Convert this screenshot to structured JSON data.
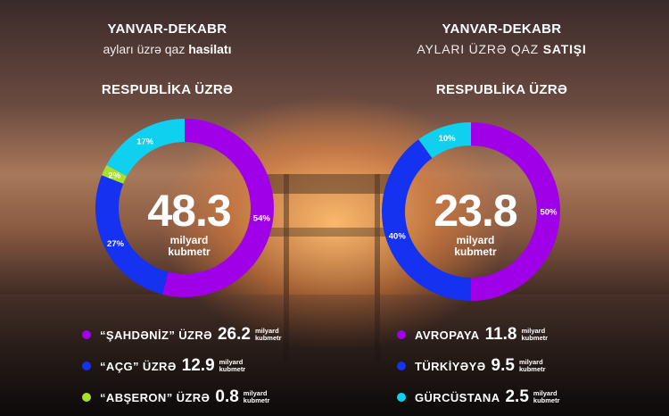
{
  "left": {
    "title": "YANVAR-DEKABR",
    "subtitle_prefix": "ayları üzrə qaz ",
    "subtitle_bold": "hasilatı",
    "section": "RESPUBLİKA ÜZRƏ",
    "total_value": "48.3",
    "total_unit_1": "milyard",
    "total_unit_2": "kubmetr",
    "legend": [
      {
        "name": "“ŞAHDƏNİZ” ÜZRƏ",
        "value": "26.2",
        "unit_1": "milyard",
        "unit_2": "kubmetr",
        "color": "#a000e8"
      },
      {
        "name": "“AÇG” ÜZRƏ",
        "value": "12.9",
        "unit_1": "milyard",
        "unit_2": "kubmetr",
        "color": "#1432f0"
      },
      {
        "name": "“ABŞERON” ÜZRƏ",
        "value": "0.8",
        "unit_1": "milyard",
        "unit_2": "kubmetr",
        "color": "#a6e02a"
      }
    ]
  },
  "right": {
    "title": "YANVAR-DEKABR",
    "subtitle_prefix": "AYLARI ÜZRƏ QAZ ",
    "subtitle_bold": "SATIŞI",
    "section": "RESPUBLİKA ÜZRƏ",
    "total_value": "23.8",
    "total_unit_1": "milyard",
    "total_unit_2": "kubmetr",
    "legend": [
      {
        "name": "AVROPAYA",
        "value": "11.8",
        "unit_1": "milyard",
        "unit_2": "kubmetr",
        "color": "#a000e8"
      },
      {
        "name": "TÜRKİYƏYƏ",
        "value": "9.5",
        "unit_1": "milyard",
        "unit_2": "kubmetr",
        "color": "#1432f0"
      },
      {
        "name": "GÜRCÜSTANA",
        "value": "2.5",
        "unit_1": "milyard",
        "unit_2": "kubmetr",
        "color": "#10d0f0"
      }
    ]
  },
  "chart_data": [
    {
      "type": "pie",
      "title": "RESPUBLİKA ÜZRƏ",
      "center_label": "48.3 milyard kubmetr",
      "slices": [
        {
          "label": "54%",
          "value": 54,
          "color": "#a000e8"
        },
        {
          "label": "27%",
          "value": 27,
          "color": "#1432f0"
        },
        {
          "label": "2%",
          "value": 2,
          "color": "#a6e02a"
        },
        {
          "label": "17%",
          "value": 17,
          "color": "#10d0f0"
        }
      ]
    },
    {
      "type": "pie",
      "title": "RESPUBLİKA ÜZRƏ",
      "center_label": "23.8 milyard kubmetr",
      "slices": [
        {
          "label": "50%",
          "value": 50,
          "color": "#a000e8"
        },
        {
          "label": "40%",
          "value": 40,
          "color": "#1432f0"
        },
        {
          "label": "10%",
          "value": 10,
          "color": "#10d0f0"
        }
      ]
    }
  ]
}
